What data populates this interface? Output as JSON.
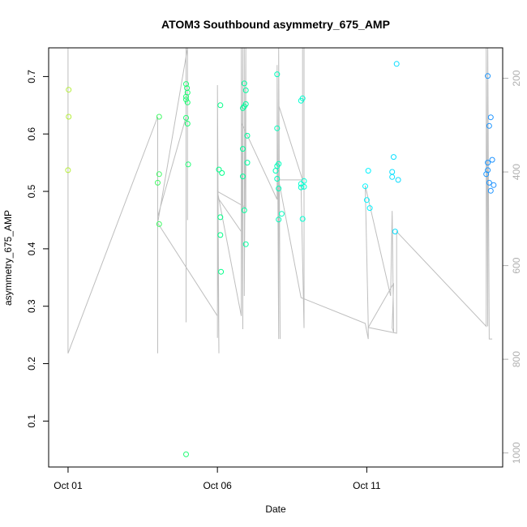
{
  "chart_data": {
    "type": "scatter",
    "title": "ATOM3 Southbound asymmetry_675_AMP",
    "xlabel": "Date",
    "ylabel": "asymmetry_675_AMP",
    "x_unit": "days from Oct 01",
    "xlim": [
      -0.65,
      14.55
    ],
    "ylim": [
      0.02,
      0.75
    ],
    "x_ticks": [
      {
        "value": 0,
        "label": "Oct 01"
      },
      {
        "value": 5,
        "label": "Oct 06"
      },
      {
        "value": 10,
        "label": "Oct 11"
      }
    ],
    "y_ticks": [
      0.1,
      0.2,
      0.3,
      0.4,
      0.5,
      0.6,
      0.7
    ],
    "y2_ticks": [
      200,
      400,
      600,
      800,
      1000
    ],
    "y2lim": [
      1030,
      135
    ],
    "colors": {
      "line": "#bebebe",
      "axis": "#000000",
      "right_axis": "#b0b0b0",
      "point_gradient": [
        "#b8f03c",
        "#00ff7f",
        "#00ffff",
        "#1e90ff"
      ]
    },
    "points": [
      [
        0.02,
        0.677
      ],
      [
        0.02,
        0.63
      ],
      [
        0.0,
        0.537
      ],
      [
        3.05,
        0.63
      ],
      [
        3.05,
        0.53
      ],
      [
        3.0,
        0.515
      ],
      [
        3.05,
        0.443
      ],
      [
        3.95,
        0.687
      ],
      [
        3.95,
        0.665
      ],
      [
        3.98,
        0.68
      ],
      [
        4.0,
        0.672
      ],
      [
        3.95,
        0.66
      ],
      [
        4.0,
        0.655
      ],
      [
        3.95,
        0.628
      ],
      [
        4.0,
        0.618
      ],
      [
        4.02,
        0.547
      ],
      [
        3.95,
        0.042
      ],
      [
        5.1,
        0.65
      ],
      [
        5.05,
        0.538
      ],
      [
        5.15,
        0.532
      ],
      [
        5.1,
        0.455
      ],
      [
        5.1,
        0.424
      ],
      [
        5.12,
        0.36
      ],
      [
        5.9,
        0.688
      ],
      [
        5.95,
        0.676
      ],
      [
        5.95,
        0.652
      ],
      [
        5.85,
        0.645
      ],
      [
        5.9,
        0.648
      ],
      [
        5.85,
        0.574
      ],
      [
        6.0,
        0.597
      ],
      [
        5.85,
        0.526
      ],
      [
        6.0,
        0.55
      ],
      [
        5.95,
        0.408
      ],
      [
        5.9,
        0.467
      ],
      [
        7.0,
        0.704
      ],
      [
        7.0,
        0.61
      ],
      [
        7.0,
        0.544
      ],
      [
        6.95,
        0.536
      ],
      [
        7.05,
        0.548
      ],
      [
        7.0,
        0.522
      ],
      [
        7.05,
        0.505
      ],
      [
        7.05,
        0.451
      ],
      [
        7.15,
        0.461
      ],
      [
        7.85,
        0.662
      ],
      [
        7.8,
        0.658
      ],
      [
        7.8,
        0.513
      ],
      [
        7.8,
        0.507
      ],
      [
        7.9,
        0.518
      ],
      [
        7.9,
        0.508
      ],
      [
        7.85,
        0.452
      ],
      [
        10.05,
        0.536
      ],
      [
        9.95,
        0.509
      ],
      [
        10.0,
        0.485
      ],
      [
        10.1,
        0.471
      ],
      [
        10.9,
        0.56
      ],
      [
        10.85,
        0.534
      ],
      [
        10.85,
        0.525
      ],
      [
        11.05,
        0.52
      ],
      [
        10.95,
        0.43
      ],
      [
        11.0,
        0.722
      ],
      [
        14.05,
        0.701
      ],
      [
        14.15,
        0.629
      ],
      [
        14.1,
        0.614
      ],
      [
        14.2,
        0.555
      ],
      [
        14.05,
        0.55
      ],
      [
        14.05,
        0.537
      ],
      [
        14.0,
        0.53
      ],
      [
        14.1,
        0.515
      ],
      [
        14.25,
        0.511
      ],
      [
        14.15,
        0.501
      ]
    ],
    "line": [
      [
        0.0,
        0.75
      ],
      [
        0.0,
        0.218
      ],
      [
        3.0,
        0.63
      ],
      [
        3.0,
        0.218
      ],
      [
        3.0,
        0.456
      ],
      [
        3.95,
        0.63
      ],
      [
        3.95,
        0.75
      ],
      [
        3.95,
        0.272
      ],
      [
        3.95,
        0.75
      ],
      [
        4.0,
        0.75
      ],
      [
        4.0,
        0.45
      ],
      [
        4.0,
        0.75
      ],
      [
        3.0,
        0.445
      ],
      [
        5.0,
        0.283
      ],
      [
        5.0,
        0.245
      ],
      [
        5.0,
        0.685
      ],
      [
        5.05,
        0.218
      ],
      [
        5.0,
        0.49
      ],
      [
        5.8,
        0.43
      ],
      [
        5.8,
        0.75
      ],
      [
        5.85,
        0.26
      ],
      [
        5.85,
        0.75
      ],
      [
        5.9,
        0.75
      ],
      [
        5.9,
        0.318
      ],
      [
        5.95,
        0.75
      ],
      [
        5.95,
        0.472
      ],
      [
        5.0,
        0.5
      ],
      [
        5.8,
        0.283
      ],
      [
        5.8,
        0.62
      ],
      [
        7.0,
        0.486
      ],
      [
        7.0,
        0.72
      ],
      [
        7.05,
        0.243
      ],
      [
        7.05,
        0.75
      ],
      [
        7.1,
        0.243
      ],
      [
        7.05,
        0.65
      ],
      [
        7.85,
        0.52
      ],
      [
        7.85,
        0.75
      ],
      [
        7.9,
        0.75
      ],
      [
        7.9,
        0.262
      ],
      [
        7.8,
        0.51
      ],
      [
        7.85,
        0.52
      ],
      [
        7.05,
        0.52
      ],
      [
        7.8,
        0.315
      ],
      [
        9.95,
        0.27
      ],
      [
        10.05,
        0.243
      ],
      [
        10.05,
        0.268
      ],
      [
        9.95,
        0.51
      ],
      [
        10.8,
        0.318
      ],
      [
        10.85,
        0.466
      ],
      [
        10.9,
        0.255
      ],
      [
        10.85,
        0.262
      ],
      [
        10.9,
        0.34
      ],
      [
        10.05,
        0.263
      ],
      [
        11.0,
        0.253
      ],
      [
        11.0,
        0.43
      ],
      [
        14.0,
        0.265
      ],
      [
        14.0,
        0.75
      ],
      [
        14.05,
        0.265
      ],
      [
        14.05,
        0.75
      ],
      [
        14.1,
        0.243
      ],
      [
        14.2,
        0.243
      ]
    ]
  }
}
